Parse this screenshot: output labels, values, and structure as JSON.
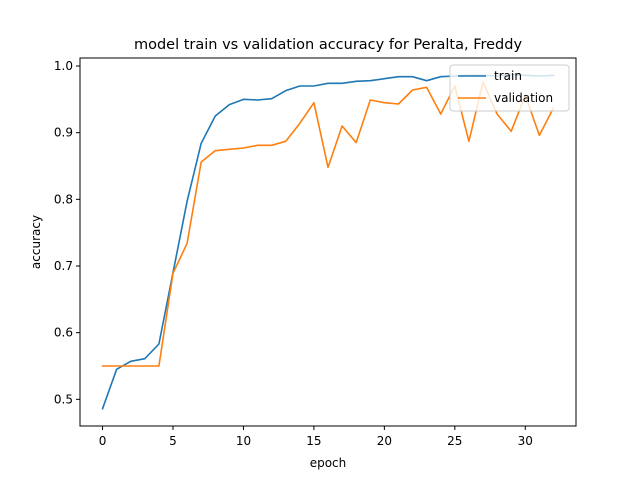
{
  "chart_data": {
    "type": "line",
    "title": "model train vs validation accuracy for Peralta, Freddy",
    "xlabel": "epoch",
    "ylabel": "accuracy",
    "xlim": [
      -1.6,
      33.6
    ],
    "ylim": [
      0.46,
      1.012
    ],
    "xticks": [
      0,
      5,
      10,
      15,
      20,
      25,
      30
    ],
    "yticks": [
      0.5,
      0.6,
      0.7,
      0.8,
      0.9,
      1.0
    ],
    "ytick_labels": [
      "0.5",
      "0.6",
      "0.7",
      "0.8",
      "0.9",
      "1.0"
    ],
    "grid": false,
    "legend_position": "top-right",
    "x": [
      0,
      1,
      2,
      3,
      4,
      5,
      6,
      7,
      8,
      9,
      10,
      11,
      12,
      13,
      14,
      15,
      16,
      17,
      18,
      19,
      20,
      21,
      22,
      23,
      24,
      25,
      26,
      27,
      28,
      29,
      30,
      31,
      32
    ],
    "series": [
      {
        "name": "train",
        "color": "#1f77b4",
        "values": [
          0.486,
          0.545,
          0.557,
          0.561,
          0.583,
          0.69,
          0.797,
          0.884,
          0.925,
          0.942,
          0.95,
          0.949,
          0.951,
          0.963,
          0.97,
          0.97,
          0.974,
          0.974,
          0.977,
          0.978,
          0.981,
          0.984,
          0.984,
          0.978,
          0.984,
          0.985,
          0.986,
          0.986,
          0.985,
          0.987,
          0.986,
          0.985,
          0.986
        ]
      },
      {
        "name": "validation",
        "color": "#ff7f0e",
        "values": [
          0.55,
          0.55,
          0.55,
          0.55,
          0.55,
          0.689,
          0.734,
          0.856,
          0.873,
          0.875,
          0.877,
          0.881,
          0.881,
          0.887,
          0.914,
          0.945,
          0.848,
          0.91,
          0.885,
          0.949,
          0.945,
          0.943,
          0.964,
          0.968,
          0.928,
          0.97,
          0.887,
          0.976,
          0.928,
          0.902,
          0.956,
          0.896,
          0.937
        ]
      }
    ]
  }
}
